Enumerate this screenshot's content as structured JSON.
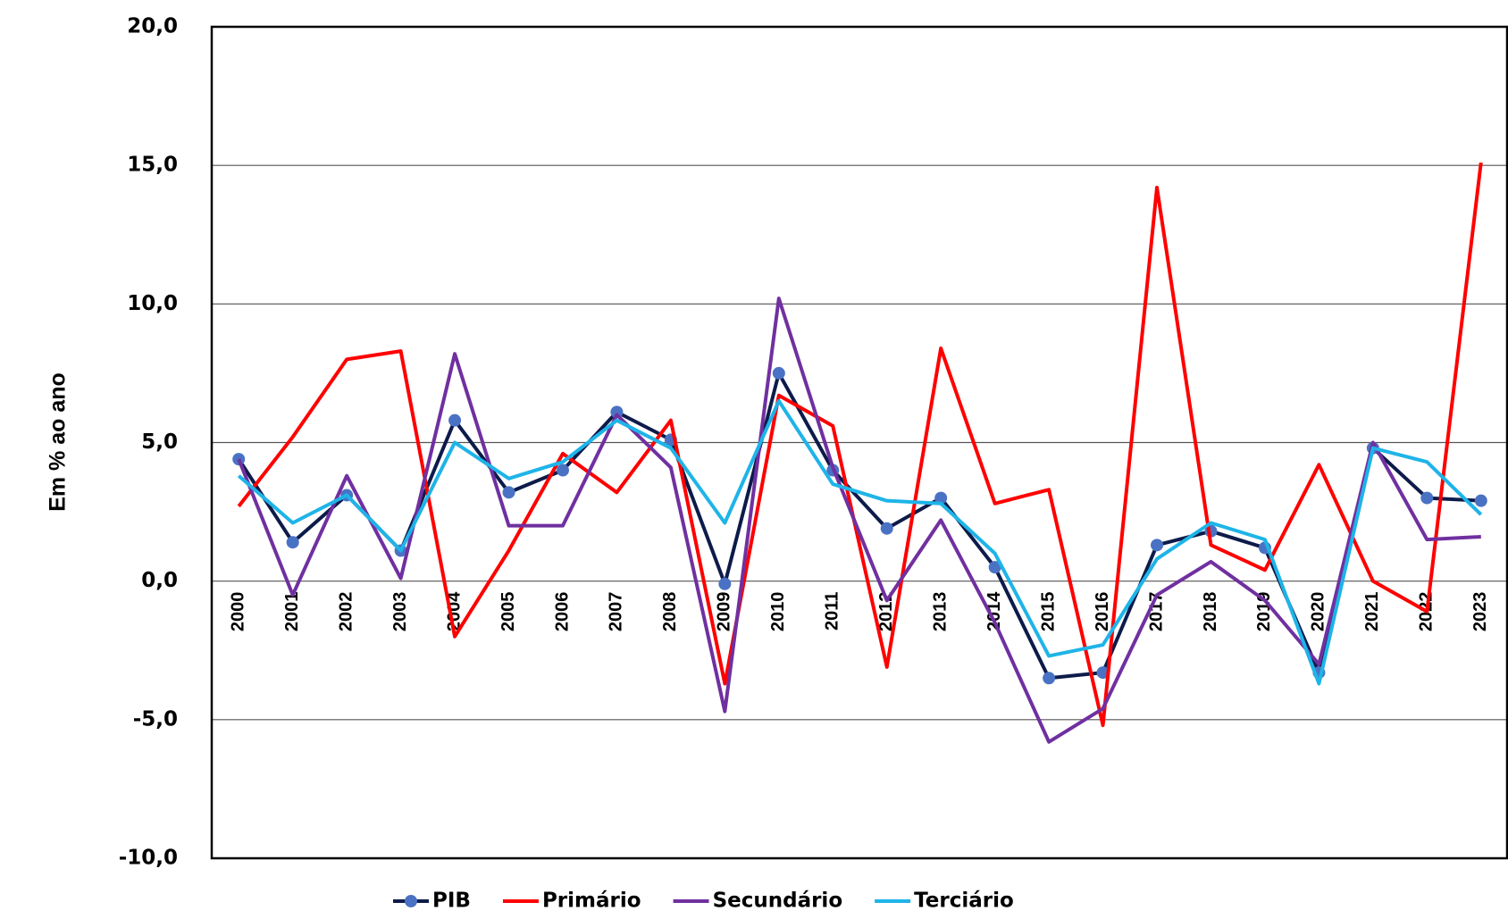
{
  "chart_data": {
    "type": "line",
    "y_label": "Em % ao ano",
    "categories": [
      "2000",
      "2001",
      "2002",
      "2003",
      "2004",
      "2005",
      "2006",
      "2007",
      "2008",
      "2009",
      "2010",
      "2011",
      "2012",
      "2013",
      "2014",
      "2015",
      "2016",
      "2017",
      "2018",
      "2019",
      "2020",
      "2021",
      "2022",
      "2023"
    ],
    "series": [
      {
        "name": "PIB",
        "color": "#0d1b4a",
        "marker_color": "#4a72c4",
        "marker": true,
        "values": [
          4.4,
          1.4,
          3.1,
          1.1,
          5.8,
          3.2,
          4.0,
          6.1,
          5.1,
          -0.1,
          7.5,
          4.0,
          1.9,
          3.0,
          0.5,
          -3.5,
          -3.3,
          1.3,
          1.8,
          1.2,
          -3.3,
          4.8,
          3.0,
          2.9
        ]
      },
      {
        "name": "Primário",
        "color": "#ff0000",
        "marker": false,
        "values": [
          2.7,
          5.2,
          8.0,
          8.3,
          -2.0,
          1.1,
          4.6,
          3.2,
          5.8,
          -3.7,
          6.7,
          5.6,
          -3.1,
          8.4,
          2.8,
          3.3,
          -5.2,
          14.2,
          1.3,
          0.4,
          4.2,
          0.0,
          -1.1,
          15.1
        ]
      },
      {
        "name": "Secundário",
        "color": "#7030a0",
        "marker": false,
        "values": [
          4.4,
          -0.5,
          3.8,
          0.1,
          8.2,
          2.0,
          2.0,
          6.0,
          4.1,
          -4.7,
          10.2,
          4.1,
          -0.7,
          2.2,
          -1.5,
          -5.8,
          -4.6,
          -0.5,
          0.7,
          -0.7,
          -3.0,
          5.0,
          1.5,
          1.6
        ]
      },
      {
        "name": "Terciário",
        "color": "#1eb4e8",
        "marker": false,
        "values": [
          3.8,
          2.1,
          3.1,
          1.1,
          5.0,
          3.7,
          4.3,
          5.8,
          4.8,
          2.1,
          6.5,
          3.5,
          2.9,
          2.8,
          1.0,
          -2.7,
          -2.3,
          0.8,
          2.1,
          1.5,
          -3.7,
          4.8,
          4.3,
          2.4
        ]
      }
    ],
    "ylim": [
      -10,
      20
    ],
    "yticks": [
      {
        "value": -10,
        "label": "-10,0"
      },
      {
        "value": -5,
        "label": "-5,0"
      },
      {
        "value": 0,
        "label": "0,0"
      },
      {
        "value": 5,
        "label": "5,0"
      },
      {
        "value": 10,
        "label": "10,0"
      },
      {
        "value": 15,
        "label": "15,0"
      },
      {
        "value": 20,
        "label": "20,0"
      }
    ],
    "grid": true,
    "legend": "bottom"
  }
}
